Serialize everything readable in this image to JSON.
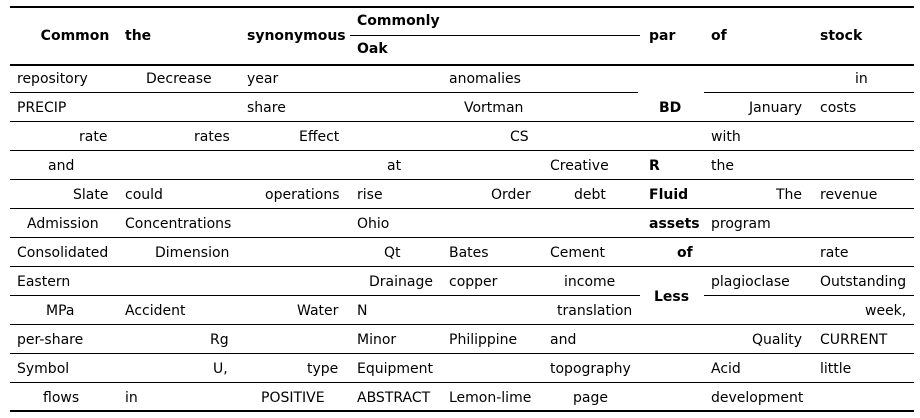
{
  "header": {
    "h1": "Common",
    "h2": "the",
    "h3": "synonymous",
    "h4_top": "Commonly",
    "h4_bottom": "Oak",
    "h5": "par",
    "h6": "of",
    "h7": "stock"
  },
  "rows": [
    [
      "repository",
      "Decrease",
      "year",
      "",
      "anomalies",
      "",
      "",
      "",
      "in"
    ],
    [
      "PRECIP",
      "",
      "share",
      "",
      "Vortman",
      "",
      "BD",
      "January",
      "costs"
    ],
    [
      "rate",
      "rates",
      "Effect",
      "",
      "CS",
      "",
      "",
      "with",
      ""
    ],
    [
      "and",
      "",
      "",
      "at",
      "",
      "Creative",
      "R",
      "the",
      ""
    ],
    [
      "Slate",
      "could",
      "operations",
      "rise",
      "Order",
      "debt",
      "Fluid",
      "The",
      "revenue"
    ],
    [
      "Admission",
      "Concentrations",
      "",
      "Ohio",
      "",
      "",
      "assets",
      "program",
      ""
    ],
    [
      "Consolidated",
      "Dimension",
      "",
      "Qt",
      "Bates",
      "Cement",
      "of",
      "",
      "rate"
    ],
    [
      "Eastern",
      "",
      "",
      "Drainage",
      "copper",
      "income",
      "",
      "plagioclase",
      "Outstanding"
    ],
    [
      "MPa",
      "Accident",
      "Water",
      "N",
      "",
      "translation",
      "Less",
      "",
      "week,"
    ],
    [
      "per-share",
      "Rg",
      "",
      "Minor",
      "Philippine",
      "and",
      "",
      "Quality",
      "CURRENT"
    ],
    [
      "Symbol",
      "U,",
      "type",
      "Equipment",
      "",
      "topography",
      "",
      "Acid",
      "little"
    ],
    [
      "flows",
      "in",
      "POSITIVE",
      "ABSTRACT",
      "Lemon-lime",
      "page",
      "",
      "development",
      ""
    ]
  ]
}
